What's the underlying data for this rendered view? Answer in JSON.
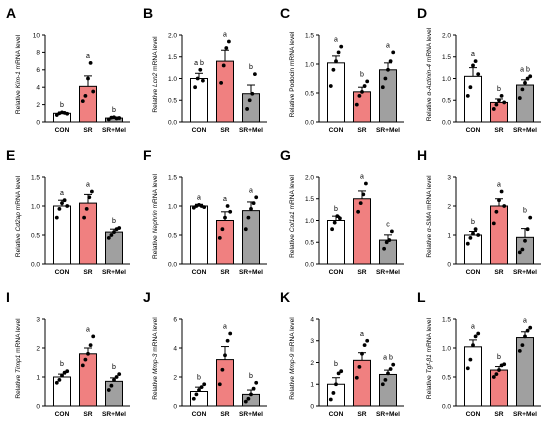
{
  "colors": {
    "CON": "#ffffff",
    "SR": "#f08080",
    "SR+Mel": "#a0a0a0",
    "axis": "#000000"
  },
  "chart_data": [
    {
      "type": "bar",
      "panel": "A",
      "ylabel_prefix": "Relative",
      "ylabel_gene": "Kim-1",
      "ylabel_suffix": "mRNA level",
      "categories": [
        "CON",
        "SR",
        "SR+Mel"
      ],
      "values": [
        1.0,
        4.1,
        0.45
      ],
      "errors": [
        0.15,
        1.2,
        0.12
      ],
      "ylim": [
        0,
        10
      ],
      "yticks": [
        "0",
        "2",
        "4",
        "6",
        "8",
        "10"
      ],
      "letters": [
        "b",
        "a",
        "b"
      ],
      "points": [
        [
          0.8,
          1.0,
          1.1,
          1.05,
          0.95
        ],
        [
          2.4,
          3.0,
          5.0,
          6.8,
          3.5
        ],
        [
          0.3,
          0.5,
          0.55,
          0.4,
          0.45
        ]
      ]
    },
    {
      "type": "bar",
      "panel": "B",
      "ylabel_prefix": "Relative",
      "ylabel_gene": "Lcn2",
      "ylabel_suffix": "mRNA level",
      "categories": [
        "CON",
        "SR",
        "SR+Mel"
      ],
      "values": [
        1.0,
        1.4,
        0.65
      ],
      "errors": [
        0.12,
        0.25,
        0.2
      ],
      "ylim": [
        0,
        2.0
      ],
      "yticks": [
        "0.0",
        "0.5",
        "1.0",
        "1.5",
        "2.0"
      ],
      "letters": [
        "a b",
        "a",
        "b"
      ],
      "points": [
        [
          0.8,
          1.0,
          1.2,
          0.95
        ],
        [
          0.9,
          1.3,
          1.7,
          1.85
        ],
        [
          0.3,
          0.5,
          0.65,
          1.1
        ]
      ]
    },
    {
      "type": "bar",
      "panel": "C",
      "ylabel_prefix": "Relative",
      "ylabel_gene": "Podocin",
      "ylabel_suffix": "mRNA level",
      "gene_italic": false,
      "categories": [
        "CON",
        "SR",
        "SR+Mel"
      ],
      "values": [
        1.02,
        0.52,
        0.9
      ],
      "errors": [
        0.12,
        0.08,
        0.12
      ],
      "ylim": [
        0,
        1.5
      ],
      "yticks": [
        "0.0",
        "0.5",
        "1.0",
        "1.5"
      ],
      "letters": [
        "a",
        "b",
        "a"
      ],
      "points": [
        [
          0.62,
          0.9,
          1.05,
          1.2,
          1.3
        ],
        [
          0.3,
          0.45,
          0.52,
          0.62,
          0.7
        ],
        [
          0.6,
          0.75,
          0.9,
          1.05,
          1.2
        ]
      ]
    },
    {
      "type": "bar",
      "panel": "D",
      "ylabel_prefix": "Relative",
      "ylabel_gene": "α-Actinin-4",
      "ylabel_suffix": "mRNA level",
      "categories": [
        "CON",
        "SR",
        "SR+Mel"
      ],
      "values": [
        1.05,
        0.45,
        0.85
      ],
      "errors": [
        0.2,
        0.08,
        0.12
      ],
      "ylim": [
        0,
        2.0
      ],
      "yticks": [
        "0.0",
        "0.5",
        "1.0",
        "1.5",
        "2.0"
      ],
      "letters": [
        "a",
        "b",
        "a b"
      ],
      "points": [
        [
          0.6,
          0.8,
          1.3,
          1.4,
          1.1
        ],
        [
          0.3,
          0.4,
          0.5,
          0.6,
          0.45
        ],
        [
          0.55,
          0.75,
          0.9,
          1.0,
          1.05
        ]
      ]
    },
    {
      "type": "bar",
      "panel": "E",
      "ylabel_prefix": "Relative",
      "ylabel_gene": "Cd2ap",
      "ylabel_suffix": "mRNA level",
      "categories": [
        "CON",
        "SR",
        "SR+Mel"
      ],
      "values": [
        1.0,
        1.05,
        0.55
      ],
      "errors": [
        0.1,
        0.15,
        0.05
      ],
      "ylim": [
        0,
        1.5
      ],
      "yticks": [
        "0.0",
        "0.5",
        "1.0",
        "1.5"
      ],
      "letters": [
        "a",
        "a",
        "b"
      ],
      "points": [
        [
          0.8,
          0.95,
          1.05,
          1.1,
          1.0
        ],
        [
          0.8,
          0.95,
          1.15,
          1.25
        ],
        [
          0.45,
          0.5,
          0.55,
          0.6,
          0.62
        ]
      ]
    },
    {
      "type": "bar",
      "panel": "F",
      "ylabel_prefix": "Relative",
      "ylabel_gene": "Nephrin",
      "ylabel_suffix": "mRNA level",
      "categories": [
        "CON",
        "SR",
        "SR+Mel"
      ],
      "values": [
        1.0,
        0.75,
        0.92
      ],
      "errors": [
        0.03,
        0.15,
        0.15
      ],
      "ylim": [
        0,
        1.5
      ],
      "yticks": [
        "0.0",
        "0.5",
        "1.0",
        "1.5"
      ],
      "letters": [
        "a",
        "a",
        "a"
      ],
      "points": [
        [
          0.97,
          1.0,
          1.02,
          1.0,
          0.98
        ],
        [
          0.45,
          0.6,
          0.8,
          1.0,
          0.9
        ],
        [
          0.6,
          0.8,
          0.95,
          1.05,
          1.15
        ]
      ]
    },
    {
      "type": "bar",
      "panel": "G",
      "ylabel_prefix": "Relative",
      "ylabel_gene": "Col1a1",
      "ylabel_suffix": "mRNA level",
      "categories": [
        "CON",
        "SR",
        "SR+Mel"
      ],
      "values": [
        1.0,
        1.5,
        0.55
      ],
      "errors": [
        0.1,
        0.18,
        0.12
      ],
      "ylim": [
        0,
        2.0
      ],
      "yticks": [
        "0.0",
        "0.5",
        "1.0",
        "1.5",
        "2.0"
      ],
      "letters": [
        "b",
        "a",
        "c"
      ],
      "points": [
        [
          0.8,
          0.95,
          1.1,
          1.05
        ],
        [
          1.2,
          1.4,
          1.6,
          1.85
        ],
        [
          0.35,
          0.5,
          0.55,
          0.75
        ]
      ]
    },
    {
      "type": "bar",
      "panel": "H",
      "ylabel_prefix": "Relative",
      "ylabel_gene": "α-SMA",
      "ylabel_suffix": "mRNA level",
      "categories": [
        "CON",
        "SR",
        "SR+Mel"
      ],
      "values": [
        1.0,
        2.0,
        0.92
      ],
      "errors": [
        0.12,
        0.25,
        0.3
      ],
      "ylim": [
        0,
        3
      ],
      "yticks": [
        "0",
        "1",
        "2",
        "3"
      ],
      "letters": [
        "b",
        "a",
        "b"
      ],
      "points": [
        [
          0.7,
          0.9,
          1.05,
          1.2,
          1.0
        ],
        [
          1.4,
          1.8,
          2.2,
          2.5,
          2.0
        ],
        [
          0.4,
          0.5,
          0.8,
          1.2,
          1.6
        ]
      ]
    },
    {
      "type": "bar",
      "panel": "I",
      "ylabel_prefix": "Relative",
      "ylabel_gene": "Timp1",
      "ylabel_suffix": "mRNA level",
      "categories": [
        "CON",
        "SR",
        "SR+Mel"
      ],
      "values": [
        1.0,
        1.8,
        0.85
      ],
      "errors": [
        0.1,
        0.2,
        0.12
      ],
      "ylim": [
        0,
        3
      ],
      "yticks": [
        "0",
        "1",
        "2",
        "3"
      ],
      "letters": [
        "b",
        "a",
        "b"
      ],
      "points": [
        [
          0.8,
          0.9,
          1.05,
          1.15,
          1.2
        ],
        [
          1.4,
          1.6,
          1.8,
          2.1,
          2.4
        ],
        [
          0.55,
          0.7,
          0.9,
          1.0,
          1.1
        ]
      ]
    },
    {
      "type": "bar",
      "panel": "J",
      "ylabel_prefix": "Relative",
      "ylabel_gene": "Mmp-3",
      "ylabel_suffix": "mRNA level",
      "categories": [
        "CON",
        "SR",
        "SR+Mel"
      ],
      "values": [
        1.0,
        3.2,
        0.8
      ],
      "errors": [
        0.3,
        0.9,
        0.3
      ],
      "ylim": [
        0,
        6
      ],
      "yticks": [
        "0",
        "2",
        "4",
        "6"
      ],
      "letters": [
        "b",
        "a",
        "b"
      ],
      "points": [
        [
          0.5,
          0.8,
          1.1,
          1.3,
          1.5
        ],
        [
          1.5,
          2.5,
          3.5,
          4.5,
          5.0
        ],
        [
          0.3,
          0.5,
          0.8,
          1.2,
          1.6
        ]
      ]
    },
    {
      "type": "bar",
      "panel": "K",
      "ylabel_prefix": "Relative",
      "ylabel_gene": "Mmp-9",
      "ylabel_suffix": "mRNA level",
      "categories": [
        "CON",
        "SR",
        "SR+Mel"
      ],
      "values": [
        1.0,
        2.1,
        1.45
      ],
      "errors": [
        0.3,
        0.35,
        0.2
      ],
      "ylim": [
        0,
        4
      ],
      "yticks": [
        "0",
        "1",
        "2",
        "3",
        "4"
      ],
      "letters": [
        "b",
        "a",
        "a b"
      ],
      "points": [
        [
          0.3,
          0.6,
          1.0,
          1.5,
          1.6
        ],
        [
          1.3,
          1.8,
          2.4,
          2.8,
          3.0
        ],
        [
          1.0,
          1.2,
          1.5,
          1.7,
          1.9
        ]
      ]
    },
    {
      "type": "bar",
      "panel": "L",
      "ylabel_prefix": "Relative",
      "ylabel_gene": "Tgf-β1",
      "ylabel_suffix": "mRNA level",
      "categories": [
        "CON",
        "SR",
        "SR+Mel"
      ],
      "values": [
        1.02,
        0.62,
        1.18
      ],
      "errors": [
        0.12,
        0.06,
        0.1
      ],
      "ylim": [
        0,
        1.5
      ],
      "yticks": [
        "0.0",
        "0.5",
        "1.0",
        "1.5"
      ],
      "letters": [
        "a",
        "b",
        "a"
      ],
      "points": [
        [
          0.65,
          0.8,
          1.05,
          1.2,
          1.25
        ],
        [
          0.5,
          0.55,
          0.62,
          0.7,
          0.72
        ],
        [
          0.95,
          1.05,
          1.2,
          1.3,
          1.35
        ]
      ]
    }
  ]
}
